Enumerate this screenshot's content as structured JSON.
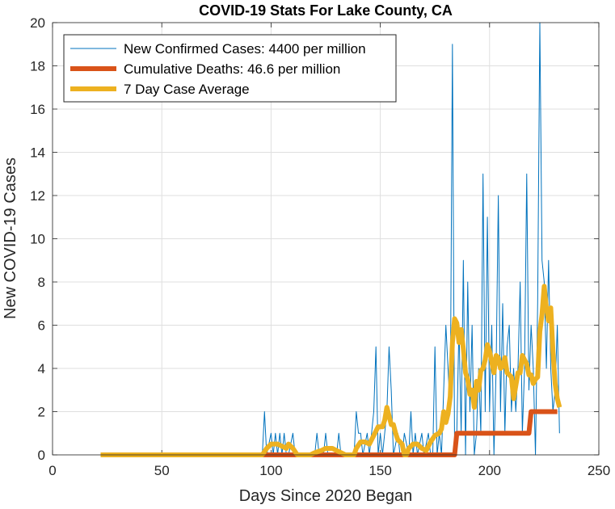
{
  "chart_data": {
    "type": "line",
    "title": "COVID-19 Stats For Lake County, CA",
    "xlabel": "Days Since 2020 Began",
    "ylabel": "New COVID-19 Cases",
    "xlim": [
      0,
      250
    ],
    "ylim": [
      0,
      20
    ],
    "x_ticks": [
      0,
      50,
      100,
      150,
      200,
      250
    ],
    "y_ticks": [
      0,
      2,
      4,
      6,
      8,
      10,
      12,
      14,
      16,
      18,
      20
    ],
    "x_tick_labels": [
      "0",
      "50",
      "100",
      "150",
      "200",
      "250"
    ],
    "y_tick_labels": [
      "0",
      "2",
      "4",
      "6",
      "8",
      "10",
      "12",
      "14",
      "16",
      "18",
      "20"
    ],
    "grid": true,
    "legend_position": "top-left",
    "series": [
      {
        "name": "New Confirmed Cases: 4400 per million",
        "color": "#0072BD",
        "style": "thin",
        "points": [
          [
            22,
            0
          ],
          [
            96,
            0
          ],
          [
            97,
            2
          ],
          [
            98,
            0
          ],
          [
            100,
            1
          ],
          [
            101,
            0
          ],
          [
            102,
            1
          ],
          [
            103,
            0
          ],
          [
            104,
            1
          ],
          [
            105,
            0
          ],
          [
            106,
            1
          ],
          [
            107,
            0
          ],
          [
            108,
            0
          ],
          [
            110,
            1
          ],
          [
            111,
            0
          ],
          [
            120,
            0
          ],
          [
            121,
            1
          ],
          [
            122,
            0
          ],
          [
            124,
            0
          ],
          [
            125,
            1
          ],
          [
            126,
            0
          ],
          [
            130,
            0
          ],
          [
            131,
            1
          ],
          [
            132,
            0
          ],
          [
            138,
            0
          ],
          [
            139,
            2
          ],
          [
            140,
            1
          ],
          [
            141,
            1
          ],
          [
            142,
            0
          ],
          [
            144,
            1
          ],
          [
            145,
            0
          ],
          [
            147,
            2
          ],
          [
            148,
            5
          ],
          [
            149,
            0
          ],
          [
            150,
            1
          ],
          [
            151,
            0
          ],
          [
            153,
            2
          ],
          [
            154,
            5
          ],
          [
            155,
            3
          ],
          [
            156,
            0
          ],
          [
            158,
            1
          ],
          [
            159,
            0
          ],
          [
            160,
            0
          ],
          [
            161,
            1
          ],
          [
            163,
            0
          ],
          [
            164,
            2
          ],
          [
            165,
            0
          ],
          [
            166,
            1
          ],
          [
            167,
            0
          ],
          [
            169,
            1
          ],
          [
            170,
            0
          ],
          [
            172,
            1
          ],
          [
            173,
            0
          ],
          [
            174,
            0
          ],
          [
            175,
            5
          ],
          [
            176,
            0
          ],
          [
            177,
            1
          ],
          [
            178,
            0
          ],
          [
            180,
            6
          ],
          [
            181,
            4
          ],
          [
            182,
            2
          ],
          [
            183,
            19
          ],
          [
            184,
            0
          ],
          [
            185,
            1
          ],
          [
            186,
            6
          ],
          [
            187,
            1
          ],
          [
            188,
            9
          ],
          [
            189,
            0
          ],
          [
            190,
            8
          ],
          [
            191,
            2
          ],
          [
            192,
            6
          ],
          [
            193,
            0
          ],
          [
            194,
            1
          ],
          [
            195,
            4
          ],
          [
            196,
            1
          ],
          [
            197,
            13
          ],
          [
            198,
            2
          ],
          [
            199,
            11
          ],
          [
            200,
            2
          ],
          [
            201,
            6
          ],
          [
            202,
            0
          ],
          [
            203,
            4
          ],
          [
            204,
            12
          ],
          [
            205,
            2
          ],
          [
            206,
            7
          ],
          [
            207,
            1
          ],
          [
            208,
            5
          ],
          [
            209,
            6
          ],
          [
            210,
            2
          ],
          [
            211,
            4
          ],
          [
            212,
            2
          ],
          [
            213,
            4
          ],
          [
            214,
            8
          ],
          [
            215,
            1
          ],
          [
            216,
            4
          ],
          [
            217,
            13
          ],
          [
            218,
            3
          ],
          [
            219,
            6
          ],
          [
            220,
            4
          ],
          [
            221,
            0
          ],
          [
            222,
            7
          ],
          [
            223,
            20
          ],
          [
            224,
            9
          ],
          [
            225,
            8
          ],
          [
            226,
            4
          ],
          [
            227,
            9
          ],
          [
            228,
            4
          ],
          [
            229,
            2
          ],
          [
            230,
            3
          ],
          [
            231,
            6
          ],
          [
            232,
            1
          ]
        ]
      },
      {
        "name": "Cumulative Deaths: 46.6 per million",
        "color": "#D95319",
        "style": "thick",
        "points": [
          [
            96,
            0
          ],
          [
            184,
            0
          ],
          [
            185,
            1
          ],
          [
            218,
            1
          ],
          [
            219,
            2
          ],
          [
            231,
            2
          ]
        ]
      },
      {
        "name": "7 Day Case Average",
        "color": "#EDB120",
        "style": "thick",
        "points": [
          [
            22,
            0
          ],
          [
            96,
            0
          ],
          [
            98,
            0.3
          ],
          [
            100,
            0.5
          ],
          [
            103,
            0.5
          ],
          [
            105,
            0.4
          ],
          [
            107,
            0.3
          ],
          [
            108,
            0.5
          ],
          [
            110,
            0.3
          ],
          [
            112,
            0
          ],
          [
            118,
            0
          ],
          [
            120,
            0.1
          ],
          [
            123,
            0.2
          ],
          [
            125,
            0.3
          ],
          [
            128,
            0.3
          ],
          [
            130,
            0.2
          ],
          [
            132,
            0.1
          ],
          [
            134,
            0
          ],
          [
            138,
            0
          ],
          [
            139,
            0.3
          ],
          [
            141,
            0.6
          ],
          [
            143,
            0.6
          ],
          [
            145,
            0.5
          ],
          [
            147,
            0.9
          ],
          [
            149,
            1.3
          ],
          [
            151,
            1.3
          ],
          [
            152,
            1.6
          ],
          [
            153,
            2.2
          ],
          [
            154,
            1.8
          ],
          [
            155,
            1.4
          ],
          [
            156,
            1.4
          ],
          [
            157,
            1.0
          ],
          [
            158,
            0.7
          ],
          [
            160,
            0.5
          ],
          [
            161,
            0
          ],
          [
            162,
            0
          ],
          [
            163,
            0.3
          ],
          [
            165,
            0.5
          ],
          [
            167,
            0.5
          ],
          [
            169,
            0.3
          ],
          [
            171,
            0.2
          ],
          [
            173,
            0.6
          ],
          [
            175,
            0.9
          ],
          [
            177,
            1.0
          ],
          [
            178,
            1.2
          ],
          [
            179,
            2.0
          ],
          [
            180,
            1.5
          ],
          [
            181,
            1.9
          ],
          [
            182,
            2.7
          ],
          [
            183,
            5.2
          ],
          [
            184,
            6.3
          ],
          [
            185,
            6.1
          ],
          [
            186,
            5.2
          ],
          [
            187,
            5.8
          ],
          [
            188,
            4.9
          ],
          [
            189,
            3.8
          ],
          [
            190,
            3.5
          ],
          [
            191,
            2.8
          ],
          [
            192,
            3.0
          ],
          [
            193,
            2.2
          ],
          [
            194,
            3.4
          ],
          [
            195,
            3.0
          ],
          [
            196,
            3.9
          ],
          [
            197,
            4.0
          ],
          [
            198,
            4.4
          ],
          [
            199,
            5.1
          ],
          [
            200,
            4.8
          ],
          [
            201,
            4.3
          ],
          [
            202,
            3.8
          ],
          [
            203,
            4.6
          ],
          [
            204,
            4.5
          ],
          [
            205,
            4.0
          ],
          [
            206,
            4.1
          ],
          [
            207,
            4.5
          ],
          [
            208,
            3.8
          ],
          [
            209,
            3.7
          ],
          [
            210,
            3.6
          ],
          [
            211,
            2.6
          ],
          [
            212,
            3.2
          ],
          [
            213,
            3.8
          ],
          [
            214,
            3.8
          ],
          [
            215,
            4.6
          ],
          [
            216,
            4.4
          ],
          [
            217,
            4.2
          ],
          [
            218,
            3.7
          ],
          [
            219,
            3.7
          ],
          [
            220,
            3.3
          ],
          [
            221,
            3.5
          ],
          [
            222,
            3.6
          ],
          [
            223,
            5.7
          ],
          [
            224,
            6.5
          ],
          [
            225,
            7.8
          ],
          [
            226,
            6.8
          ],
          [
            227,
            6.2
          ],
          [
            228,
            6.8
          ],
          [
            229,
            4.8
          ],
          [
            230,
            3.3
          ],
          [
            231,
            2.6
          ],
          [
            232,
            2.2
          ]
        ]
      }
    ]
  }
}
